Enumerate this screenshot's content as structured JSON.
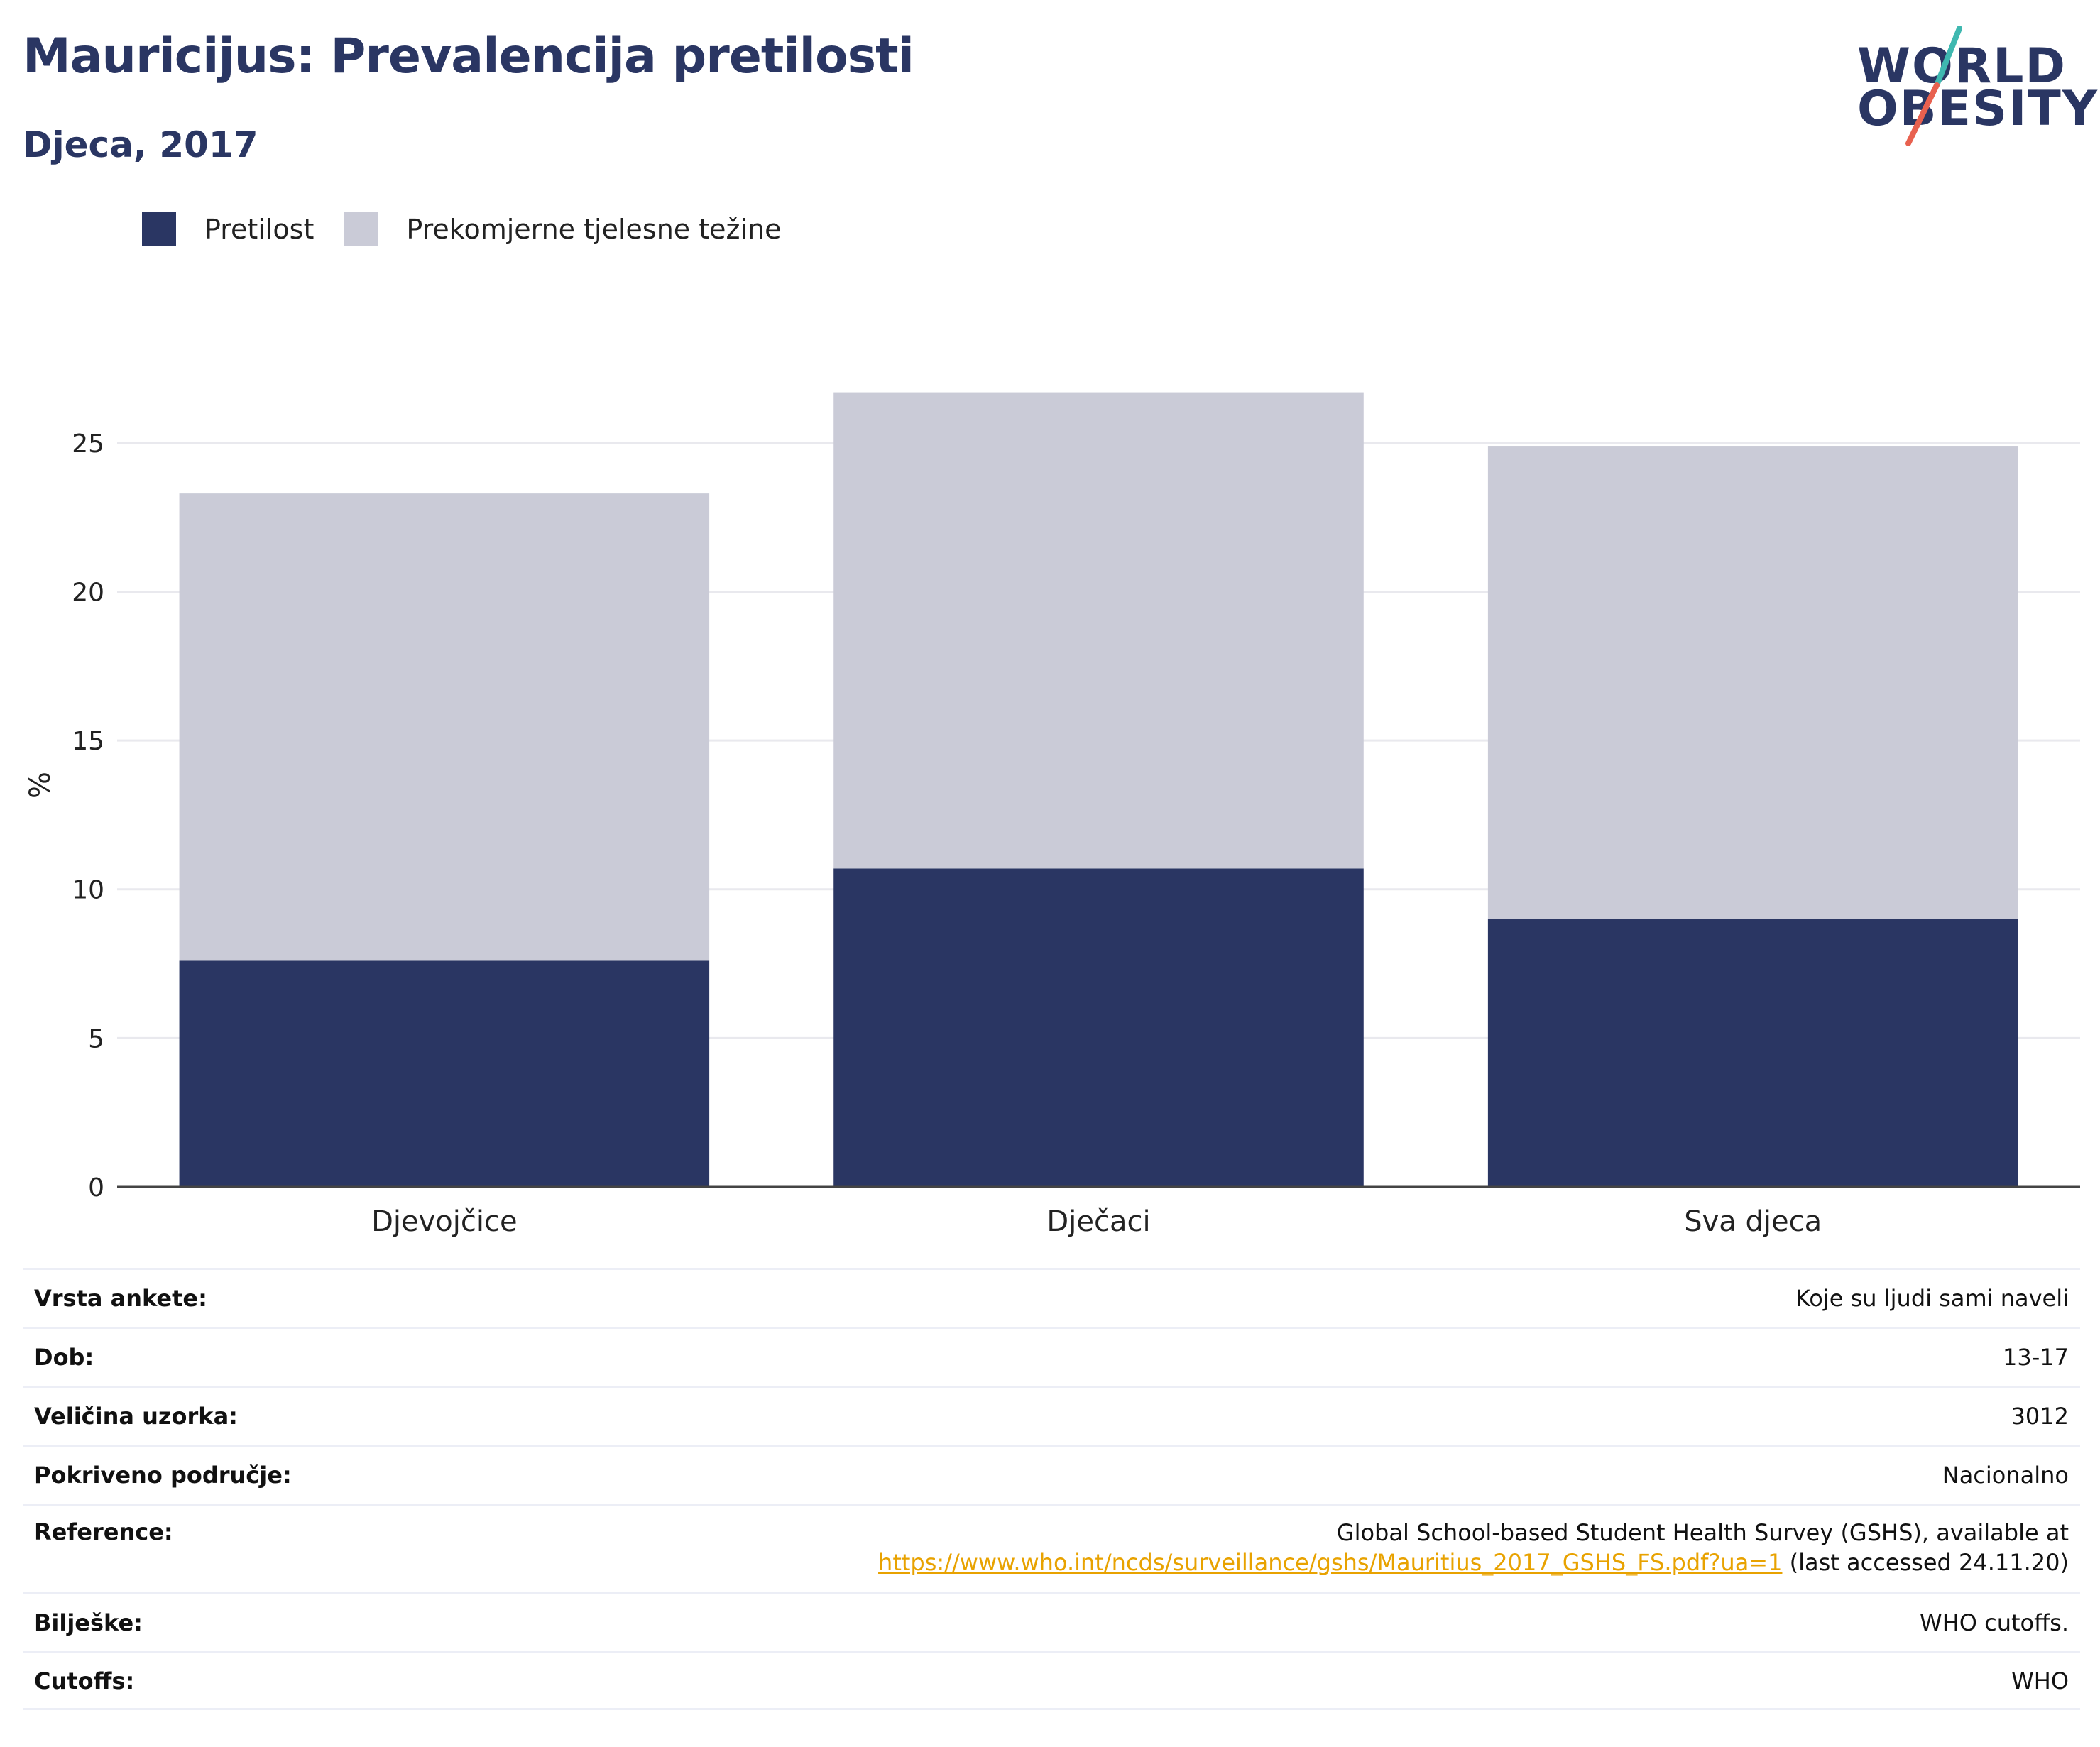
{
  "header": {
    "title": "Mauricijus: Prevalencija pretilosti",
    "subtitle": "Djeca, 2017"
  },
  "logo": {
    "line1": "WORLD",
    "line2": "OBESITY",
    "slash_color_top": "#3fb8b0",
    "slash_color_bottom": "#e8614f"
  },
  "colors": {
    "obesity": "#2a3663",
    "overweight": "#cacbd7",
    "grid": "#e9e9ee",
    "axis": "#444444"
  },
  "legend": {
    "items": [
      {
        "label": "Pretilost",
        "color": "#2a3663"
      },
      {
        "label": "Prekomjerne tjelesne težine",
        "color": "#cacbd7"
      }
    ]
  },
  "chart_data": {
    "type": "bar",
    "stacked": true,
    "categories": [
      "Djevojčice",
      "Dječaci",
      "Sva djeca"
    ],
    "series": [
      {
        "name": "Pretilost",
        "values": [
          7.6,
          10.7,
          9.0
        ]
      },
      {
        "name": "Prekomjerne tjelesne težine",
        "values": [
          15.7,
          16.0,
          15.9
        ]
      }
    ],
    "ylabel": "%",
    "ylim": [
      0,
      27
    ],
    "yticks": [
      0,
      5,
      10,
      15,
      20,
      25
    ],
    "grid": true,
    "legend_position": "top-left"
  },
  "info": {
    "rows": [
      {
        "key": "Vrsta ankete:",
        "value": "Koje su ljudi sami naveli"
      },
      {
        "key": "Dob:",
        "value": "13-17"
      },
      {
        "key": "Veličina uzorka:",
        "value": "3012"
      },
      {
        "key": "Pokriveno područje:",
        "value": "Nacionalno"
      },
      {
        "key": "Reference:",
        "value_line1": "Global School-based Student Health Survey (GSHS), available at",
        "link": "https://www.who.int/ncds/surveillance/gshs/Mauritius_2017_GSHS_FS.pdf?ua=1",
        "value_suffix": "(last accessed 24.11.20)"
      },
      {
        "key": "Bilješke:",
        "value": "WHO cutoffs."
      },
      {
        "key": "Cutoffs:",
        "value": "WHO"
      }
    ]
  }
}
